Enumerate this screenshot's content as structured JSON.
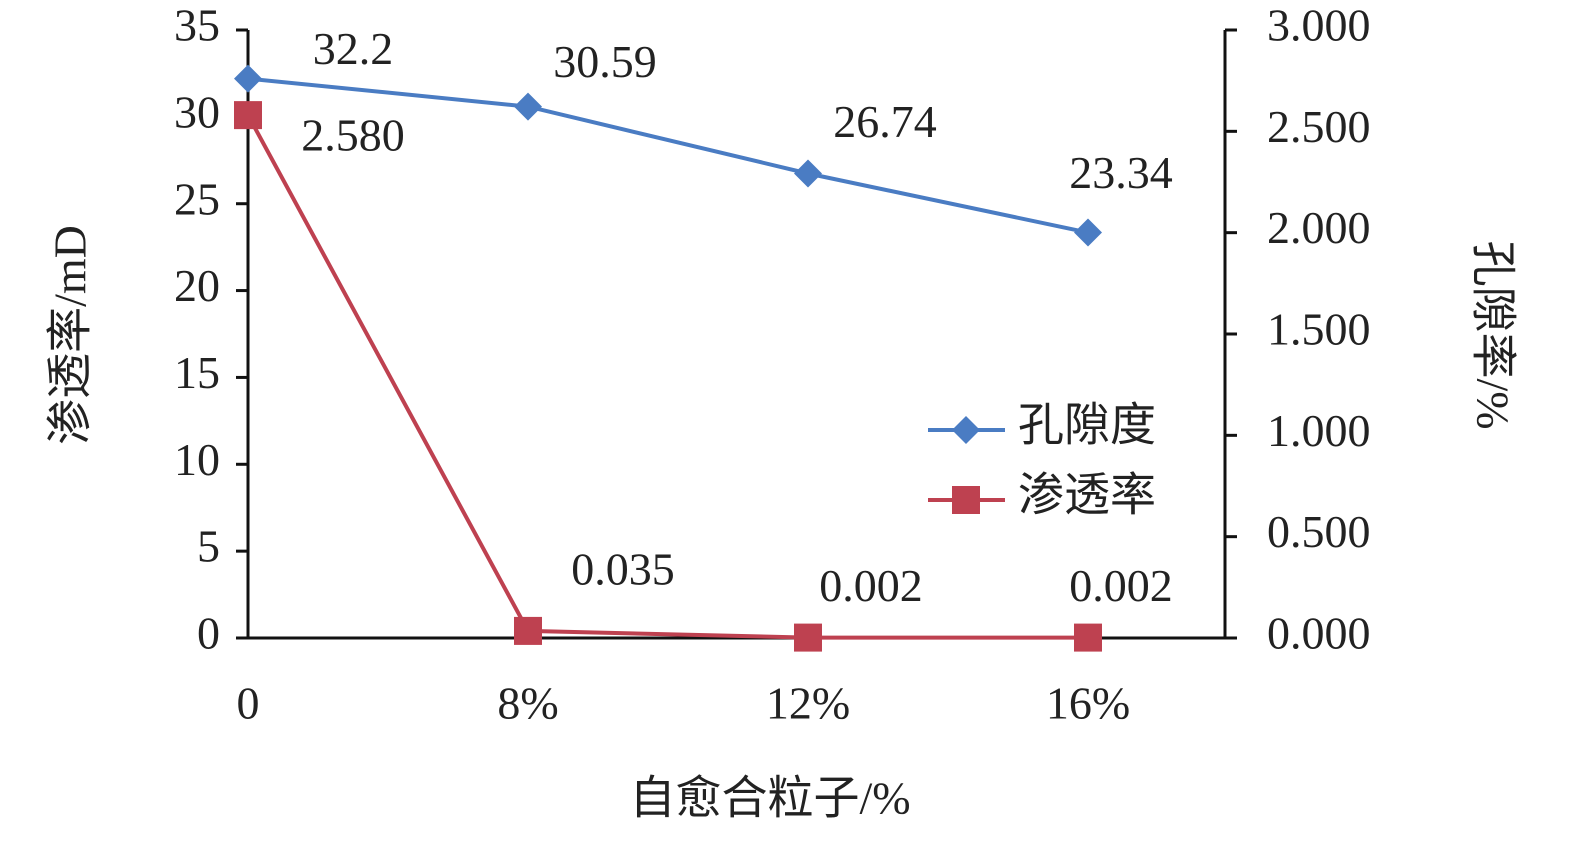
{
  "chart_data": {
    "type": "line",
    "x_label": "自愈合粒子/%",
    "y_label": "渗透率/mD",
    "y2_label": "孔隙率/%",
    "categories": [
      "0",
      "8%",
      "12%",
      "16%"
    ],
    "ylim": [
      0,
      35
    ],
    "yticks": [
      0,
      5,
      10,
      15,
      20,
      25,
      30,
      35
    ],
    "y2lim": [
      0,
      3
    ],
    "y2ticks": [
      {
        "value": 0,
        "label": "0.000"
      },
      {
        "value": 0.5,
        "label": "0.500"
      },
      {
        "value": 1,
        "label": "1.000"
      },
      {
        "value": 1.5,
        "label": "1.500"
      },
      {
        "value": 2,
        "label": "2.000"
      },
      {
        "value": 2.5,
        "label": "2.500"
      },
      {
        "value": 3,
        "label": "3.000"
      }
    ],
    "series": [
      {
        "name": "孔隙度",
        "color": "#4a7cc3",
        "marker": "diamond",
        "values": [
          32.2,
          30.59,
          26.74,
          23.34
        ]
      },
      {
        "name": "渗透率",
        "color": "#be4150",
        "marker": "square",
        "axis": "y2",
        "values": [
          2.58,
          0.035,
          0.002,
          0.002
        ],
        "value_labels": [
          "2.580",
          "0.035",
          "0.002",
          "0.002"
        ]
      }
    ]
  }
}
